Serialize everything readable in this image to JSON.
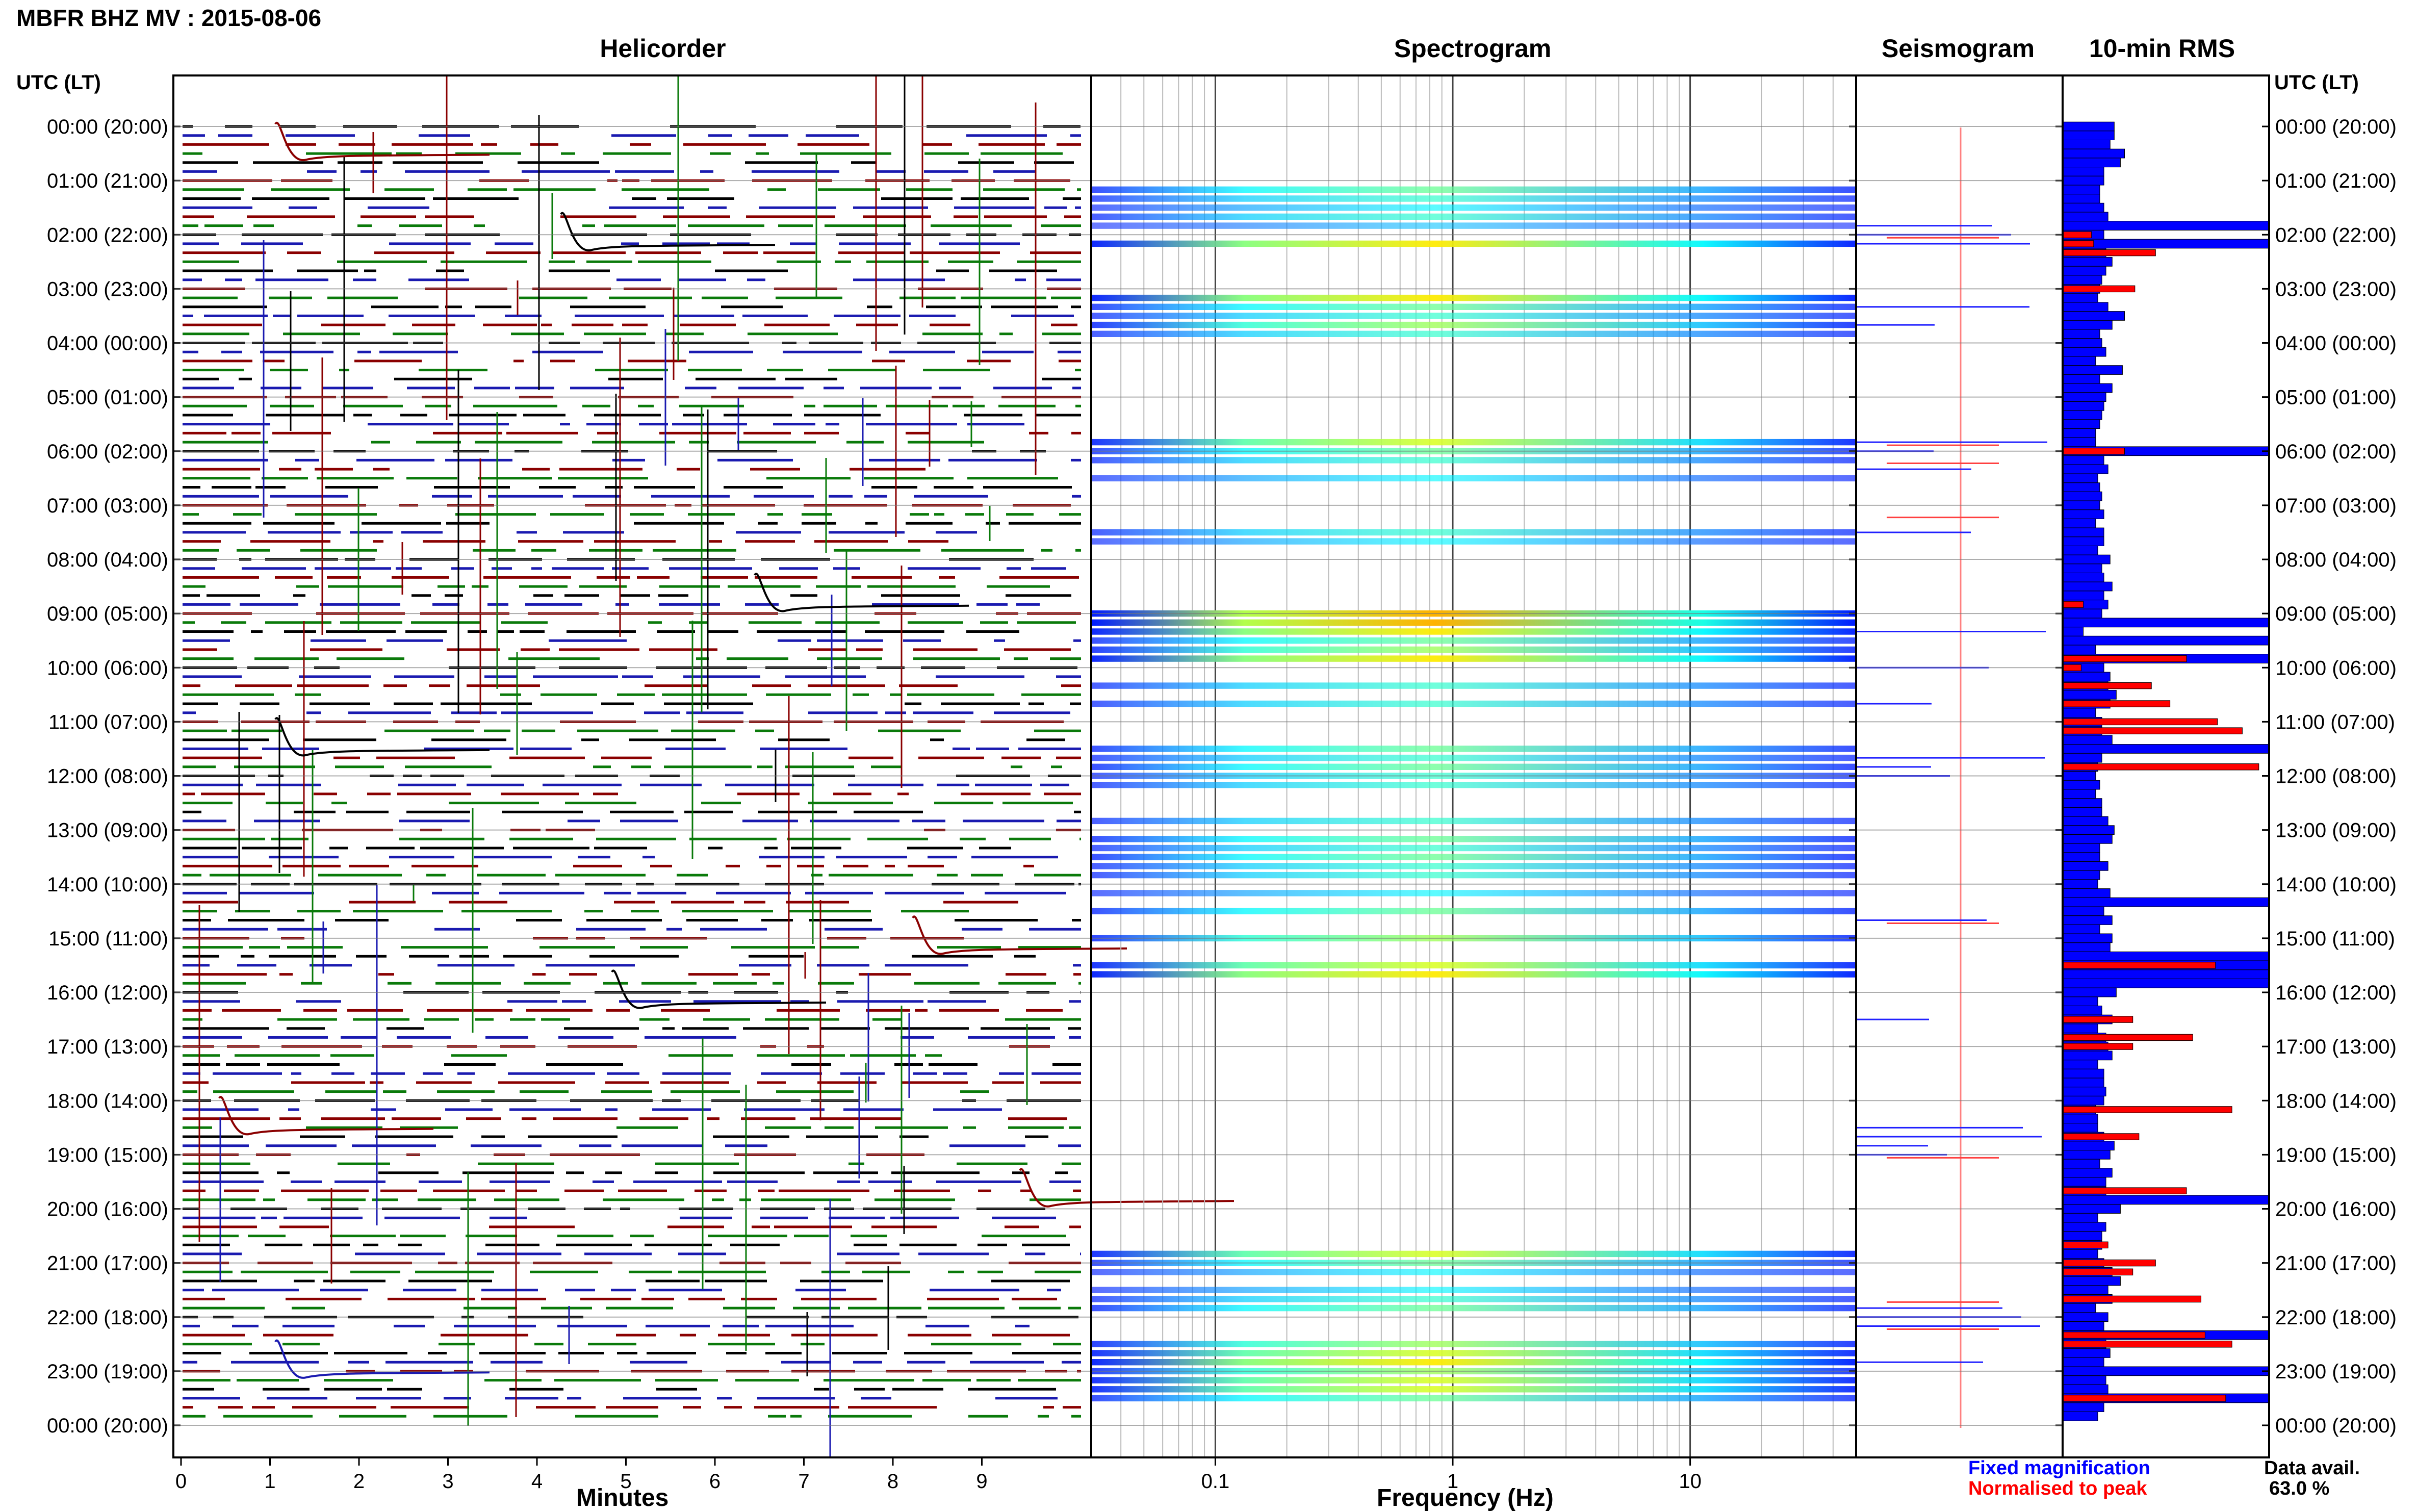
{
  "header": {
    "title": "MBFR BHZ MV : 2015-08-06"
  },
  "panels": {
    "helicorder": "Helicorder",
    "spectrogram": "Spectrogram",
    "seismogram": "Seismogram",
    "rms": "10-min RMS"
  },
  "axes": {
    "utc_header_left": "UTC (LT)",
    "utc_header_right": "UTC (LT)",
    "helicorder_xlabel": "Minutes",
    "spectrogram_xlabel": "Frequency (Hz)"
  },
  "legend": {
    "fixed": "Fixed magnification",
    "normalised": "Normalised to peak",
    "data_avail_label": "Data avail.",
    "data_avail_value": "63.0 %"
  },
  "colors": {
    "trace_cycle": [
      "#000000",
      "#1a1ab0",
      "#8a0000",
      "#0a7a0a"
    ],
    "fixed": "#0000ff",
    "normalised": "#ff0000",
    "spectrogram_bg": "#ffffff"
  },
  "chart_data": [
    {
      "type": "line",
      "name": "helicorder",
      "title": "Helicorder",
      "xlabel": "Minutes",
      "x_ticks": [
        0,
        1,
        2,
        3,
        4,
        5,
        6,
        7,
        8,
        9
      ],
      "xlim": [
        0,
        10
      ],
      "row_minutes": 10,
      "y_ticks": [
        "00:00 (20:00)",
        "01:00 (21:00)",
        "02:00 (22:00)",
        "03:00 (23:00)",
        "04:00 (00:00)",
        "05:00 (01:00)",
        "06:00 (02:00)",
        "07:00 (03:00)",
        "08:00 (04:00)",
        "09:00 (05:00)",
        "10:00 (06:00)",
        "11:00 (07:00)",
        "12:00 (08:00)",
        "13:00 (09:00)",
        "14:00 (10:00)",
        "15:00 (11:00)",
        "16:00 (12:00)",
        "17:00 (13:00)",
        "18:00 (14:00)",
        "19:00 (15:00)",
        "20:00 (16:00)",
        "21:00 (17:00)",
        "22:00 (18:00)",
        "23:00 (19:00)",
        "00:00 (20:00)"
      ]
    },
    {
      "type": "heatmap",
      "name": "spectrogram",
      "title": "Spectrogram",
      "xlabel": "Frequency (Hz)",
      "x_scale": "log",
      "xlim": [
        0.03,
        50
      ],
      "x_tick_labels": [
        "0.1",
        "1",
        "10"
      ],
      "x_tick_values": [
        0.1,
        1,
        10
      ],
      "colormap": "jet",
      "active_rows": [
        [
          7,
          0.6
        ],
        [
          8,
          0.5
        ],
        [
          9,
          0.4
        ],
        [
          10,
          0.5
        ],
        [
          11,
          0.3
        ],
        [
          13,
          0.9
        ],
        [
          19,
          0.9
        ],
        [
          20,
          0.6
        ],
        [
          21,
          0.5
        ],
        [
          22,
          0.7
        ],
        [
          23,
          0.5
        ],
        [
          35,
          0.8
        ],
        [
          36,
          0.6
        ],
        [
          37,
          0.5
        ],
        [
          39,
          0.4
        ],
        [
          45,
          0.5
        ],
        [
          46,
          0.4
        ],
        [
          54,
          1.0
        ],
        [
          55,
          1.0
        ],
        [
          56,
          0.9
        ],
        [
          57,
          0.6
        ],
        [
          58,
          0.7
        ],
        [
          59,
          0.9
        ],
        [
          62,
          0.5
        ],
        [
          64,
          0.5
        ],
        [
          69,
          0.6
        ],
        [
          70,
          0.5
        ],
        [
          71,
          0.6
        ],
        [
          72,
          0.5
        ],
        [
          73,
          0.5
        ],
        [
          77,
          0.5
        ],
        [
          79,
          0.6
        ],
        [
          80,
          0.5
        ],
        [
          81,
          0.6
        ],
        [
          82,
          0.5
        ],
        [
          83,
          0.5
        ],
        [
          85,
          0.4
        ],
        [
          87,
          0.6
        ],
        [
          90,
          0.7
        ],
        [
          93,
          0.8
        ],
        [
          94,
          0.9
        ],
        [
          125,
          0.8
        ],
        [
          126,
          0.6
        ],
        [
          127,
          0.4
        ],
        [
          129,
          0.4
        ],
        [
          130,
          0.5
        ],
        [
          131,
          0.6
        ],
        [
          135,
          0.7
        ],
        [
          136,
          0.8
        ],
        [
          137,
          0.9
        ],
        [
          138,
          0.7
        ],
        [
          139,
          0.8
        ],
        [
          140,
          0.8
        ],
        [
          141,
          0.6
        ]
      ]
    },
    {
      "type": "line",
      "name": "seismogram",
      "title": "Seismogram",
      "blue_rows": [
        11,
        12,
        13,
        20,
        22,
        35,
        36,
        38,
        45,
        56,
        60,
        64,
        70,
        71,
        72,
        88,
        99,
        111,
        112,
        113,
        114,
        131,
        132,
        133,
        137
      ],
      "red_marks": [
        12,
        35,
        37,
        43,
        88,
        114,
        130,
        133
      ]
    },
    {
      "type": "bar",
      "name": "10-min RMS",
      "title": "10-min RMS",
      "orientation": "horizontal",
      "bins": 144,
      "xlim": [
        0,
        1
      ],
      "fixed_magnification": [
        0.25,
        0.25,
        0.23,
        0.3,
        0.28,
        0.2,
        0.2,
        0.18,
        0.18,
        0.2,
        0.22,
        1.0,
        0.2,
        1.0,
        0.21,
        0.24,
        0.21,
        0.19,
        0.18,
        0.17,
        0.22,
        0.3,
        0.24,
        0.18,
        0.19,
        0.21,
        0.16,
        0.29,
        0.18,
        0.24,
        0.21,
        0.2,
        0.19,
        0.18,
        0.16,
        0.16,
        1.0,
        0.2,
        0.22,
        0.17,
        0.18,
        0.19,
        0.18,
        0.2,
        0.16,
        0.2,
        0.2,
        0.17,
        0.23,
        0.19,
        0.2,
        0.24,
        0.2,
        0.22,
        0.19,
        1.0,
        0.1,
        1.0,
        0.16,
        1.0,
        0.2,
        0.23,
        0.22,
        0.26,
        0.23,
        0.16,
        0.19,
        0.19,
        0.24,
        1.0,
        0.19,
        0.17,
        0.16,
        0.18,
        0.16,
        0.19,
        0.19,
        0.22,
        0.25,
        0.24,
        0.18,
        0.18,
        0.22,
        0.18,
        0.17,
        0.23,
        1.0,
        0.2,
        0.24,
        0.18,
        0.24,
        0.23,
        1.0,
        1.0,
        1.0,
        1.0,
        0.26,
        0.17,
        0.19,
        0.24,
        0.17,
        0.21,
        0.22,
        0.24,
        0.17,
        0.2,
        0.2,
        0.21,
        0.2,
        0.16,
        0.17,
        0.17,
        0.2,
        0.25,
        0.23,
        0.18,
        0.24,
        0.21,
        0.21,
        1.0,
        0.28,
        0.17,
        0.21,
        0.19,
        0.19,
        0.17,
        0.2,
        0.24,
        0.28,
        0.22,
        0.24,
        0.16,
        0.22,
        0.2,
        1.0,
        0.21,
        0.23,
        0.2,
        1.0,
        0.21,
        0.22,
        1.0,
        0.2,
        0.17
      ],
      "normalised_to_peak": {
        "12": 0.14,
        "13": 0.15,
        "14": 0.45,
        "18": 0.35,
        "36": 0.3,
        "53": 0.1,
        "59": 0.6,
        "60": 0.09,
        "62": 0.43,
        "64": 0.52,
        "66": 0.75,
        "67": 0.87,
        "71": 0.95,
        "93": 0.74,
        "99": 0.34,
        "101": 0.63,
        "102": 0.34,
        "109": 0.82,
        "112": 0.37,
        "118": 0.6,
        "124": 0.22,
        "126": 0.45,
        "127": 0.34,
        "130": 0.67,
        "134": 0.69,
        "135": 0.82,
        "141": 0.79
      }
    }
  ]
}
